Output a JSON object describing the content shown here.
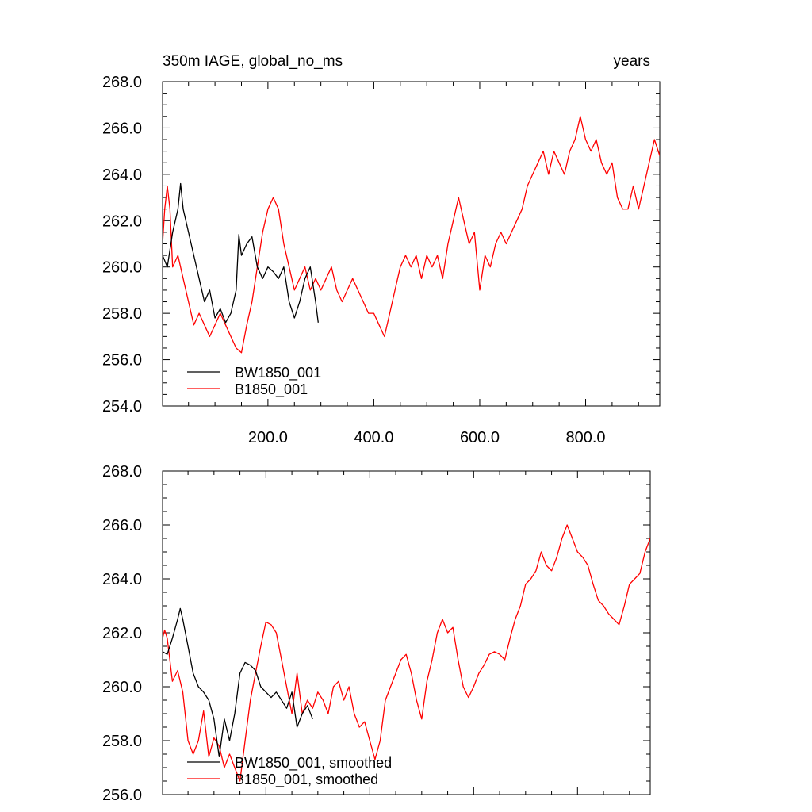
{
  "chart_data": [
    {
      "type": "line",
      "title_left": "350m IAGE, global_no_ms",
      "title_right": "years",
      "xlabel": "",
      "ylabel": "",
      "xlim": [
        1,
        940
      ],
      "ylim": [
        254,
        268
      ],
      "xticks": [
        200,
        400,
        600,
        800
      ],
      "xtick_labels": [
        "200.0",
        "400.0",
        "600.0",
        "800.0"
      ],
      "yticks": [
        254,
        256,
        258,
        260,
        262,
        264,
        266,
        268
      ],
      "ytick_labels": [
        "254.0",
        "256.0",
        "258.0",
        "260.0",
        "262.0",
        "264.0",
        "266.0",
        "268.0"
      ],
      "grid": false,
      "legend_position": "bottom-left",
      "series": [
        {
          "name": "BW1850_001",
          "color": "#000000",
          "x": [
            1,
            10,
            20,
            30,
            35,
            40,
            50,
            60,
            70,
            80,
            90,
            100,
            110,
            120,
            130,
            140,
            145,
            150,
            160,
            170,
            180,
            190,
            200,
            210,
            220,
            230,
            240,
            250,
            260,
            270,
            280,
            290,
            295
          ],
          "y": [
            260.5,
            260.0,
            261.5,
            262.5,
            263.6,
            262.5,
            261.5,
            260.5,
            259.5,
            258.5,
            259.0,
            257.8,
            258.2,
            257.6,
            258.0,
            259.0,
            261.4,
            260.5,
            261.0,
            261.3,
            260.0,
            259.5,
            260.0,
            259.8,
            259.5,
            260.0,
            258.5,
            257.8,
            258.5,
            259.5,
            260.0,
            258.5,
            257.6
          ]
        },
        {
          "name": "B1850_001",
          "color": "#ff0000",
          "x": [
            1,
            5,
            10,
            15,
            20,
            30,
            40,
            50,
            60,
            70,
            80,
            90,
            100,
            110,
            120,
            130,
            140,
            150,
            160,
            170,
            180,
            190,
            200,
            210,
            220,
            230,
            240,
            250,
            260,
            270,
            280,
            290,
            300,
            310,
            320,
            330,
            340,
            350,
            360,
            370,
            380,
            390,
            400,
            410,
            420,
            430,
            440,
            450,
            460,
            470,
            480,
            490,
            500,
            510,
            520,
            530,
            540,
            550,
            560,
            570,
            580,
            590,
            600,
            610,
            620,
            630,
            640,
            650,
            660,
            670,
            680,
            690,
            700,
            710,
            720,
            730,
            740,
            750,
            760,
            770,
            780,
            790,
            800,
            810,
            820,
            830,
            840,
            850,
            860,
            870,
            880,
            890,
            900,
            910,
            920,
            930,
            940
          ],
          "y": [
            261.0,
            262.5,
            263.5,
            262.5,
            260.0,
            260.5,
            259.5,
            258.5,
            257.5,
            258.0,
            257.5,
            257.0,
            257.5,
            258.0,
            257.5,
            257.0,
            256.5,
            256.3,
            257.5,
            258.5,
            260.0,
            261.5,
            262.5,
            263.0,
            262.5,
            261.0,
            260.0,
            259.0,
            259.5,
            260.0,
            259.0,
            259.5,
            259.0,
            259.5,
            260.0,
            259.0,
            258.5,
            259.0,
            259.5,
            259.0,
            258.5,
            258.0,
            258.0,
            257.5,
            257.0,
            258.0,
            259.0,
            260.0,
            260.5,
            260.0,
            260.5,
            259.5,
            260.5,
            260.0,
            260.5,
            259.5,
            261.0,
            262.0,
            263.0,
            262.0,
            261.0,
            261.5,
            259.0,
            260.5,
            260.0,
            261.0,
            261.5,
            261.0,
            261.5,
            262.0,
            262.5,
            263.5,
            264.0,
            264.5,
            265.0,
            264.0,
            265.0,
            264.5,
            264.0,
            265.0,
            265.5,
            266.5,
            265.5,
            265.0,
            265.5,
            264.5,
            264.0,
            264.5,
            263.0,
            262.5,
            262.5,
            263.5,
            262.5,
            263.5,
            264.5,
            265.5,
            264.8
          ]
        }
      ]
    },
    {
      "type": "line",
      "title_left": "",
      "title_right": "",
      "xlabel": "",
      "ylabel": "",
      "xlim": [
        1,
        940
      ],
      "ylim": [
        256,
        268
      ],
      "xticks": [
        200,
        400,
        600,
        800
      ],
      "yticks": [
        256,
        258,
        260,
        262,
        264,
        266,
        268
      ],
      "ytick_labels": [
        "256.0",
        "258.0",
        "260.0",
        "262.0",
        "264.0",
        "266.0",
        "268.0"
      ],
      "grid": false,
      "legend_position": "bottom-left",
      "series": [
        {
          "name": "BW1850_001, smoothed",
          "color": "#000000",
          "x": [
            1,
            10,
            20,
            30,
            35,
            40,
            50,
            60,
            70,
            80,
            90,
            100,
            110,
            120,
            130,
            140,
            150,
            160,
            170,
            180,
            190,
            200,
            210,
            220,
            230,
            240,
            250,
            260,
            270,
            280,
            290
          ],
          "y": [
            261.3,
            261.2,
            261.8,
            262.5,
            262.9,
            262.5,
            261.5,
            260.5,
            260.0,
            259.8,
            259.5,
            258.8,
            257.4,
            258.8,
            258.0,
            259.0,
            260.5,
            260.9,
            260.8,
            260.6,
            260.0,
            259.8,
            259.6,
            259.8,
            259.5,
            259.2,
            259.8,
            258.5,
            259.0,
            259.3,
            258.8
          ]
        },
        {
          "name": "B1850_001, smoothed",
          "color": "#ff0000",
          "x": [
            1,
            5,
            10,
            20,
            30,
            40,
            50,
            60,
            70,
            80,
            90,
            100,
            110,
            120,
            130,
            140,
            150,
            160,
            170,
            180,
            190,
            200,
            210,
            220,
            230,
            240,
            250,
            260,
            270,
            280,
            290,
            300,
            310,
            320,
            330,
            340,
            350,
            360,
            370,
            380,
            390,
            400,
            410,
            420,
            430,
            440,
            450,
            460,
            470,
            480,
            490,
            500,
            510,
            520,
            530,
            540,
            550,
            560,
            570,
            580,
            590,
            600,
            610,
            620,
            630,
            640,
            650,
            660,
            670,
            680,
            690,
            700,
            710,
            720,
            730,
            740,
            750,
            760,
            770,
            780,
            790,
            800,
            810,
            820,
            830,
            840,
            850,
            860,
            870,
            880,
            890,
            900,
            910,
            920,
            930,
            940
          ],
          "y": [
            261.8,
            262.1,
            261.8,
            260.2,
            260.6,
            259.8,
            258.0,
            257.5,
            258.0,
            259.1,
            257.4,
            258.1,
            257.8,
            257.0,
            257.5,
            257.0,
            256.5,
            258.0,
            259.5,
            260.5,
            261.5,
            262.4,
            262.3,
            262.0,
            261.0,
            260.0,
            259.0,
            260.5,
            259.0,
            259.5,
            259.2,
            259.8,
            259.5,
            259.0,
            260.0,
            260.2,
            259.5,
            260.0,
            259.0,
            258.5,
            258.7,
            258.0,
            257.3,
            258.0,
            259.5,
            260.0,
            260.5,
            261.0,
            261.2,
            260.5,
            259.5,
            258.8,
            260.2,
            261.0,
            262.0,
            262.5,
            262.0,
            262.2,
            261.0,
            260.0,
            259.6,
            260.0,
            260.5,
            260.8,
            261.2,
            261.3,
            261.2,
            261.0,
            261.8,
            262.5,
            263.0,
            263.8,
            264.0,
            264.3,
            265.0,
            264.5,
            264.3,
            264.8,
            265.5,
            266.0,
            265.5,
            265.0,
            264.8,
            264.5,
            263.8,
            263.2,
            263.0,
            262.7,
            262.5,
            262.3,
            263.0,
            263.8,
            264.0,
            264.2,
            265.0,
            265.5
          ]
        }
      ]
    }
  ]
}
